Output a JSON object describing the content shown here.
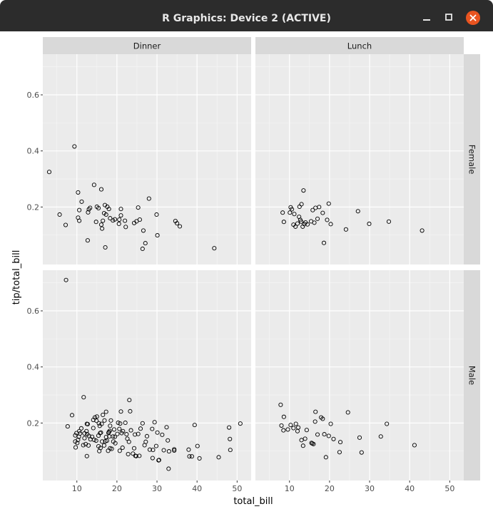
{
  "window": {
    "title": "R Graphics: Device 2 (ACTIVE)"
  },
  "chart_data": {
    "type": "scatter",
    "xlabel": "total_bill",
    "ylabel": "tip/total_bill",
    "xlim": [
      1.5,
      53.5
    ],
    "ylim": [
      -0.005,
      0.745
    ],
    "xticks": [
      "10",
      "20",
      "30",
      "40",
      "50"
    ],
    "xtick_values": [
      10,
      20,
      30,
      40,
      50
    ],
    "yticks": [
      "0.2",
      "0.4",
      "0.6"
    ],
    "ytick_values": [
      0.2,
      0.4,
      0.6
    ],
    "col_facets": [
      "Dinner",
      "Lunch"
    ],
    "row_facets": [
      "Female",
      "Male"
    ],
    "panels": [
      {
        "col": "Dinner",
        "row": "Female",
        "points": [
          [
            3.1,
            0.325
          ],
          [
            5.7,
            0.173
          ],
          [
            7.2,
            0.136
          ],
          [
            9.4,
            0.416
          ],
          [
            10.3,
            0.252
          ],
          [
            10.3,
            0.162
          ],
          [
            10.6,
            0.189
          ],
          [
            10.6,
            0.151
          ],
          [
            11.2,
            0.219
          ],
          [
            12.7,
            0.081
          ],
          [
            12.8,
            0.181
          ],
          [
            13.0,
            0.192
          ],
          [
            13.3,
            0.197
          ],
          [
            14.3,
            0.279
          ],
          [
            14.8,
            0.147
          ],
          [
            15.0,
            0.201
          ],
          [
            15.4,
            0.196
          ],
          [
            16.1,
            0.263
          ],
          [
            16.1,
            0.137
          ],
          [
            16.3,
            0.123
          ],
          [
            16.5,
            0.151
          ],
          [
            16.8,
            0.178
          ],
          [
            17.0,
            0.207
          ],
          [
            17.1,
            0.056
          ],
          [
            17.3,
            0.173
          ],
          [
            17.6,
            0.201
          ],
          [
            18.0,
            0.193
          ],
          [
            18.3,
            0.16
          ],
          [
            19.0,
            0.152
          ],
          [
            19.5,
            0.156
          ],
          [
            20.5,
            0.14
          ],
          [
            20.6,
            0.155
          ],
          [
            21.0,
            0.17
          ],
          [
            21.0,
            0.193
          ],
          [
            22.0,
            0.151
          ],
          [
            22.2,
            0.129
          ],
          [
            24.3,
            0.143
          ],
          [
            24.9,
            0.149
          ],
          [
            25.3,
            0.198
          ],
          [
            25.7,
            0.155
          ],
          [
            26.4,
            0.051
          ],
          [
            26.6,
            0.116
          ],
          [
            27.1,
            0.071
          ],
          [
            28.0,
            0.23
          ],
          [
            29.9,
            0.173
          ],
          [
            30.1,
            0.099
          ],
          [
            34.6,
            0.15
          ],
          [
            35.0,
            0.142
          ],
          [
            35.7,
            0.131
          ],
          [
            44.3,
            0.053
          ]
        ]
      },
      {
        "col": "Lunch",
        "row": "Female",
        "points": [
          [
            8.3,
            0.18
          ],
          [
            8.6,
            0.147
          ],
          [
            10.1,
            0.18
          ],
          [
            10.3,
            0.199
          ],
          [
            10.6,
            0.192
          ],
          [
            11.0,
            0.137
          ],
          [
            11.2,
            0.175
          ],
          [
            11.5,
            0.13
          ],
          [
            12.0,
            0.141
          ],
          [
            12.4,
            0.165
          ],
          [
            12.5,
            0.201
          ],
          [
            12.7,
            0.154
          ],
          [
            12.9,
            0.148
          ],
          [
            13.0,
            0.21
          ],
          [
            13.3,
            0.13
          ],
          [
            13.5,
            0.259
          ],
          [
            13.7,
            0.139
          ],
          [
            14.0,
            0.145
          ],
          [
            14.5,
            0.138
          ],
          [
            15.4,
            0.149
          ],
          [
            15.8,
            0.189
          ],
          [
            16.2,
            0.144
          ],
          [
            16.5,
            0.197
          ],
          [
            17.0,
            0.158
          ],
          [
            17.4,
            0.2
          ],
          [
            18.3,
            0.179
          ],
          [
            18.6,
            0.072
          ],
          [
            19.4,
            0.154
          ],
          [
            19.8,
            0.212
          ],
          [
            20.3,
            0.139
          ],
          [
            24.1,
            0.12
          ],
          [
            27.1,
            0.185
          ],
          [
            29.9,
            0.14
          ],
          [
            34.8,
            0.148
          ],
          [
            43.1,
            0.116
          ]
        ]
      },
      {
        "col": "Dinner",
        "row": "Male",
        "points": [
          [
            7.3,
            0.71
          ],
          [
            7.7,
            0.188
          ],
          [
            8.8,
            0.228
          ],
          [
            9.6,
            0.156
          ],
          [
            9.6,
            0.134
          ],
          [
            9.7,
            0.113
          ],
          [
            9.9,
            0.164
          ],
          [
            10.1,
            0.129
          ],
          [
            10.3,
            0.14
          ],
          [
            10.5,
            0.151
          ],
          [
            10.6,
            0.171
          ],
          [
            10.8,
            0.163
          ],
          [
            11.1,
            0.181
          ],
          [
            11.6,
            0.121
          ],
          [
            11.7,
            0.292
          ],
          [
            11.9,
            0.146
          ],
          [
            11.9,
            0.163
          ],
          [
            12.2,
            0.125
          ],
          [
            12.4,
            0.171
          ],
          [
            12.5,
            0.197
          ],
          [
            12.5,
            0.082
          ],
          [
            12.6,
            0.16
          ],
          [
            12.7,
            0.196
          ],
          [
            12.9,
            0.12
          ],
          [
            13.0,
            0.154
          ],
          [
            13.4,
            0.142
          ],
          [
            13.8,
            0.151
          ],
          [
            14.1,
            0.211
          ],
          [
            14.1,
            0.182
          ],
          [
            14.3,
            0.14
          ],
          [
            14.5,
            0.22
          ],
          [
            14.8,
            0.137
          ],
          [
            14.9,
            0.208
          ],
          [
            15.0,
            0.223
          ],
          [
            15.4,
            0.117
          ],
          [
            15.4,
            0.155
          ],
          [
            15.5,
            0.199
          ],
          [
            15.6,
            0.1
          ],
          [
            15.7,
            0.19
          ],
          [
            15.8,
            0.164
          ],
          [
            15.9,
            0.111
          ],
          [
            16.0,
            0.166
          ],
          [
            16.2,
            0.197
          ],
          [
            16.3,
            0.134
          ],
          [
            16.5,
            0.229
          ],
          [
            16.8,
            0.12
          ],
          [
            16.9,
            0.209
          ],
          [
            17.1,
            0.135
          ],
          [
            17.3,
            0.15
          ],
          [
            17.3,
            0.24
          ],
          [
            17.5,
            0.137
          ],
          [
            17.8,
            0.101
          ],
          [
            17.9,
            0.165
          ],
          [
            18.0,
            0.168
          ],
          [
            18.1,
            0.152
          ],
          [
            18.2,
            0.172
          ],
          [
            18.3,
            0.19
          ],
          [
            18.3,
            0.11
          ],
          [
            18.5,
            0.209
          ],
          [
            18.7,
            0.108
          ],
          [
            19.0,
            0.152
          ],
          [
            19.1,
            0.134
          ],
          [
            19.3,
            0.177
          ],
          [
            19.5,
            0.151
          ],
          [
            19.6,
            0.128
          ],
          [
            20.1,
            0.161
          ],
          [
            20.3,
            0.201
          ],
          [
            20.6,
            0.179
          ],
          [
            20.7,
            0.101
          ],
          [
            20.8,
            0.198
          ],
          [
            21.0,
            0.241
          ],
          [
            21.2,
            0.164
          ],
          [
            21.4,
            0.112
          ],
          [
            21.5,
            0.171
          ],
          [
            22.1,
            0.201
          ],
          [
            22.4,
            0.16
          ],
          [
            22.6,
            0.144
          ],
          [
            22.8,
            0.089
          ],
          [
            23.0,
            0.133
          ],
          [
            23.1,
            0.282
          ],
          [
            23.3,
            0.242
          ],
          [
            23.5,
            0.174
          ],
          [
            24.0,
            0.091
          ],
          [
            24.3,
            0.11
          ],
          [
            24.5,
            0.159
          ],
          [
            24.6,
            0.083
          ],
          [
            24.8,
            0.082
          ],
          [
            25.3,
            0.161
          ],
          [
            25.6,
            0.083
          ],
          [
            25.9,
            0.18
          ],
          [
            26.4,
            0.199
          ],
          [
            26.9,
            0.121
          ],
          [
            27.2,
            0.133
          ],
          [
            27.5,
            0.153
          ],
          [
            28.2,
            0.105
          ],
          [
            28.8,
            0.179
          ],
          [
            28.9,
            0.075
          ],
          [
            29.0,
            0.104
          ],
          [
            29.4,
            0.203
          ],
          [
            29.8,
            0.118
          ],
          [
            30.1,
            0.166
          ],
          [
            30.4,
            0.067
          ],
          [
            30.5,
            0.068
          ],
          [
            31.3,
            0.158
          ],
          [
            31.7,
            0.103
          ],
          [
            32.4,
            0.185
          ],
          [
            32.7,
            0.138
          ],
          [
            32.9,
            0.037
          ],
          [
            33.0,
            0.099
          ],
          [
            34.3,
            0.106
          ],
          [
            34.3,
            0.102
          ],
          [
            37.9,
            0.105
          ],
          [
            38.1,
            0.081
          ],
          [
            38.7,
            0.081
          ],
          [
            39.4,
            0.193
          ],
          [
            40.1,
            0.118
          ],
          [
            40.6,
            0.074
          ],
          [
            45.4,
            0.078
          ],
          [
            48.0,
            0.184
          ],
          [
            48.2,
            0.143
          ],
          [
            48.3,
            0.104
          ],
          [
            50.8,
            0.198
          ]
        ]
      },
      {
        "col": "Lunch",
        "row": "Male",
        "points": [
          [
            7.8,
            0.265
          ],
          [
            8.0,
            0.191
          ],
          [
            8.5,
            0.174
          ],
          [
            8.6,
            0.222
          ],
          [
            9.6,
            0.177
          ],
          [
            10.3,
            0.193
          ],
          [
            11.0,
            0.182
          ],
          [
            11.6,
            0.197
          ],
          [
            12.0,
            0.171
          ],
          [
            12.2,
            0.184
          ],
          [
            13.0,
            0.139
          ],
          [
            13.4,
            0.119
          ],
          [
            13.9,
            0.144
          ],
          [
            14.3,
            0.175
          ],
          [
            15.5,
            0.129
          ],
          [
            15.7,
            0.127
          ],
          [
            16.0,
            0.125
          ],
          [
            16.4,
            0.205
          ],
          [
            16.5,
            0.24
          ],
          [
            17.0,
            0.159
          ],
          [
            17.9,
            0.22
          ],
          [
            18.3,
            0.215
          ],
          [
            18.7,
            0.16
          ],
          [
            19.1,
            0.078
          ],
          [
            19.8,
            0.154
          ],
          [
            20.3,
            0.197
          ],
          [
            21.0,
            0.143
          ],
          [
            22.5,
            0.096
          ],
          [
            22.7,
            0.132
          ],
          [
            24.6,
            0.238
          ],
          [
            28.0,
            0.095
          ],
          [
            32.8,
            0.152
          ],
          [
            34.3,
            0.197
          ],
          [
            41.2,
            0.121
          ],
          [
            27.5,
            0.148
          ]
        ]
      }
    ]
  }
}
